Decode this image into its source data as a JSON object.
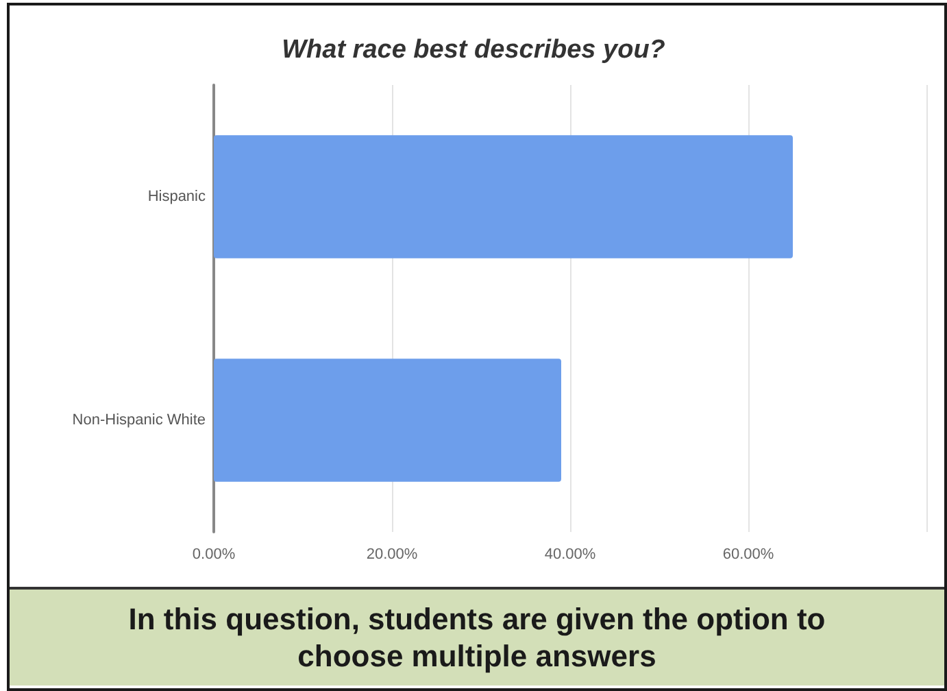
{
  "chart_data": {
    "type": "bar",
    "orientation": "horizontal",
    "title": "What race best describes you?",
    "categories": [
      "Hispanic",
      "Non-Hispanic White"
    ],
    "values": [
      65,
      39
    ],
    "color": "#6d9eeb",
    "xlim": [
      0,
      80
    ],
    "xticks": [
      {
        "value": 0,
        "label": "0.00%"
      },
      {
        "value": 20,
        "label": "20.00%"
      },
      {
        "value": 40,
        "label": "40.00%"
      },
      {
        "value": 60,
        "label": "60.00%"
      },
      {
        "value": 80,
        "label": null
      }
    ],
    "grid": "x",
    "annotations": [
      "In this question, students are given the option to choose multiple answers"
    ]
  }
}
